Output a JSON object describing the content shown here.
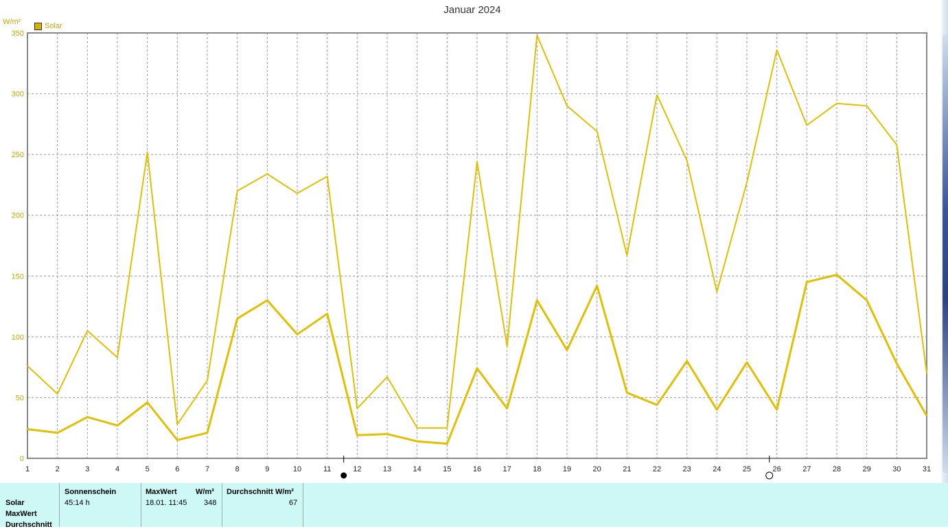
{
  "chart_data": {
    "type": "line",
    "title": "Januar 2024",
    "ylabel": "W/m²",
    "legend": [
      "Solar"
    ],
    "legend_placement": "top-left",
    "grid": true,
    "ylim": [
      0,
      350
    ],
    "yticks": [
      0,
      50,
      100,
      150,
      200,
      250,
      300,
      350
    ],
    "x": [
      1,
      2,
      3,
      4,
      5,
      6,
      7,
      8,
      9,
      10,
      11,
      12,
      13,
      14,
      15,
      16,
      17,
      18,
      19,
      20,
      21,
      22,
      23,
      24,
      25,
      26,
      27,
      28,
      29,
      30,
      31
    ],
    "series": [
      {
        "name": "Solar",
        "color": "#e0c000",
        "line_width": 2,
        "values": [
          76,
          53,
          105,
          83,
          252,
          28,
          64,
          220,
          234,
          218,
          232,
          41,
          67,
          25,
          25,
          244,
          92,
          348,
          290,
          269,
          167,
          299,
          245,
          137,
          227,
          336,
          274,
          292,
          290,
          258,
          70
        ]
      },
      {
        "name": "Solar",
        "color": "#e0c000",
        "line_width": 3,
        "values": [
          24,
          21,
          34,
          27,
          46,
          15,
          21,
          115,
          130,
          102,
          119,
          19,
          20,
          14,
          12,
          74,
          41,
          130,
          89,
          142,
          54,
          44,
          80,
          40,
          79,
          40,
          145,
          151,
          130,
          78,
          35
        ]
      }
    ],
    "moon_phases": [
      {
        "day": 11.55,
        "phase": "new-moon"
      },
      {
        "day": 25.75,
        "phase": "full-moon"
      }
    ]
  },
  "info": {
    "row_labels": [
      "Solar",
      "MaxWert",
      "Durchschnitt"
    ],
    "sun": {
      "header": "Sonnenschein",
      "value": "45:14 h"
    },
    "max": {
      "header": "MaxWert",
      "unit": "W/m²",
      "date": "18.01.  11:45",
      "value": "348"
    },
    "avg": {
      "header": "Durchschnitt",
      "unit": "W/m²",
      "value": "67"
    }
  },
  "colors": {
    "line": "#e0c000",
    "axis": "#888888",
    "grid": "#999999",
    "panel": "#cdf8f6"
  }
}
